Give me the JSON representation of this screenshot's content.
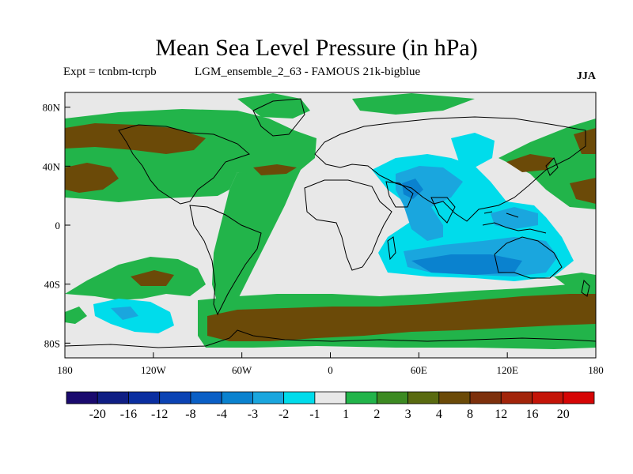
{
  "title": "Mean Sea Level Pressure (in hPa)",
  "subtitle_left": "Expt = tcnbm-tcrpb",
  "subtitle_middle": "LGM_ensemble_2_63 - FAMOUS 21k-bigblue",
  "season": "JJA",
  "axes": {
    "lon_ticks": [
      {
        "value": -180,
        "label": "180"
      },
      {
        "value": -120,
        "label": "120W"
      },
      {
        "value": -60,
        "label": "60W"
      },
      {
        "value": 0,
        "label": "0"
      },
      {
        "value": 60,
        "label": "60E"
      },
      {
        "value": 120,
        "label": "120E"
      },
      {
        "value": 180,
        "label": "180"
      }
    ],
    "lat_ticks": [
      {
        "value": 80,
        "label": "80N"
      },
      {
        "value": 40,
        "label": "40N"
      },
      {
        "value": 0,
        "label": "0"
      },
      {
        "value": -40,
        "label": "40S"
      },
      {
        "value": -80,
        "label": "80S"
      }
    ],
    "lon_range": [
      -180,
      180
    ],
    "lat_range": [
      -90,
      90
    ]
  },
  "colorbar": {
    "colors": [
      "#1a0a6e",
      "#0f1e84",
      "#0a2ea0",
      "#0b43b4",
      "#0a5fc6",
      "#0a82cf",
      "#1aa6de",
      "#00dceb",
      "#e8e8e8",
      "#22b44a",
      "#3c8a22",
      "#596a10",
      "#6b4a08",
      "#7d300c",
      "#a2240a",
      "#c41408",
      "#d60505"
    ],
    "labels": [
      "-20",
      "-16",
      "-12",
      "-8",
      "-4",
      "-3",
      "-2",
      "-1",
      "1",
      "2",
      "3",
      "4",
      "8",
      "12",
      "16",
      "20"
    ]
  },
  "map_colors": {
    "neutral": "#e8e8e8",
    "light_blue": "#00dceb",
    "mid_blue": "#1aa6de",
    "dark_blue": "#0a82cf",
    "green": "#22b44a",
    "dark_green": "#3c8a22",
    "brown": "#6b4a08",
    "coast": "#000000"
  }
}
